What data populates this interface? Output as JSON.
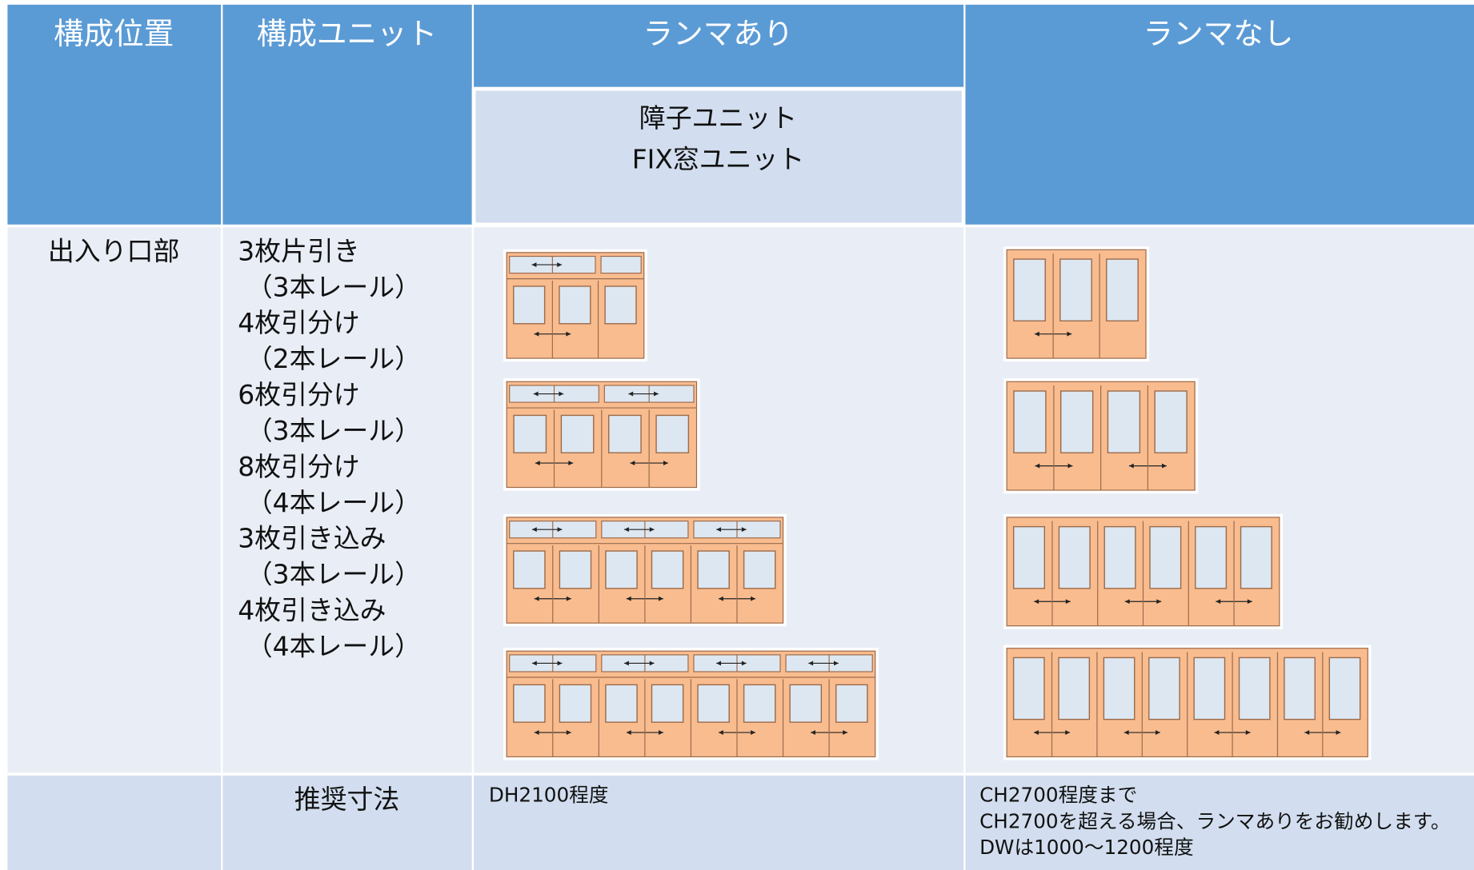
{
  "table": {
    "header": [
      "構成位置",
      "構成ユニット",
      "ランマあり",
      "ランマなし"
    ],
    "subheader": [
      "障子ユニット",
      "FIX窓ユニット"
    ],
    "rows": [
      {
        "position": "出入り口部",
        "units": [
          "3枚片引き",
          "（3本レール）",
          "4枚引分け",
          "（2本レール）",
          "6枚引分け",
          "（3本レール）",
          "8枚引分け",
          "（4本レール）",
          "3枚引き込み",
          "（3本レール）",
          "4枚引き込み",
          "（4本レール）"
        ]
      },
      {
        "label": "推奨寸法",
        "with_transom": [
          "DH2100程度"
        ],
        "without_transom": [
          "CH2700程度まで",
          "CH2700を超える場合、ランマありをお勧めします。",
          "DWは1000～1200程度"
        ]
      }
    ]
  }
}
